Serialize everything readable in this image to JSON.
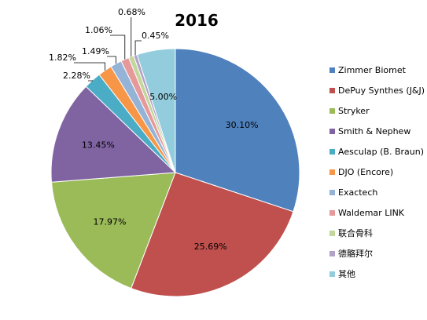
{
  "chart_data": {
    "type": "pie",
    "title": "2016",
    "legend_position": "right",
    "categories": [
      "Zimmer Biomet",
      "DePuy Synthes (J&J)",
      "Stryker",
      "Smith & Nephew",
      "Aesculap (B. Braun)",
      "DJO (Encore)",
      "Exactech",
      "Waldemar LINK",
      "联合骨科",
      "德骼拜尔",
      "其他"
    ],
    "values": [
      30.1,
      25.69,
      17.97,
      13.45,
      2.28,
      1.82,
      1.49,
      1.06,
      0.68,
      0.45,
      5.0
    ],
    "labels": [
      "30.10%",
      "25.69%",
      "17.97%",
      "13.45%",
      "2.28%",
      "1.82%",
      "1.49%",
      "1.06%",
      "0.68%",
      "0.45%",
      "5.00%"
    ],
    "colors": [
      "#4F81BD",
      "#C0504D",
      "#9BBB59",
      "#8064A2",
      "#4BACC6",
      "#F79646",
      "#95B3D7",
      "#E6999A",
      "#C3D69B",
      "#B2A2C7",
      "#93CDDD"
    ]
  }
}
